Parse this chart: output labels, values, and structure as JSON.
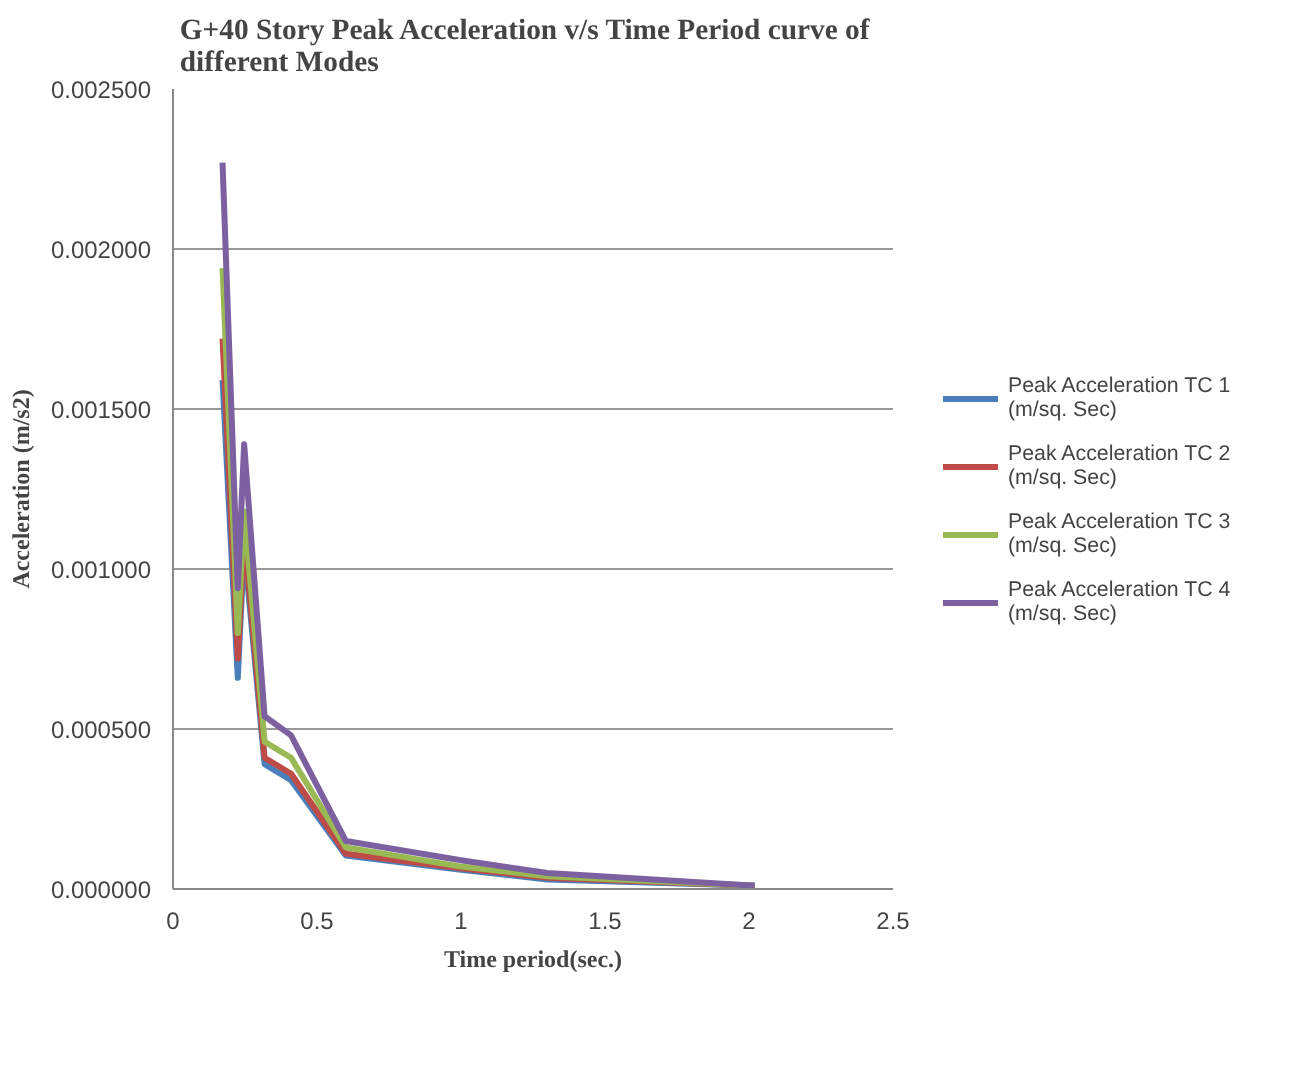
{
  "chart_data": {
    "type": "line",
    "title": "G+40 Story Peak Acceleration  v/s Time Period curve  of different Modes",
    "xlabel": "Time period(sec.)",
    "ylabel": "Acceleration (m/s2)",
    "x": [
      0.172,
      0.225,
      0.247,
      0.318,
      0.41,
      0.6,
      1.0,
      1.3,
      2.02
    ],
    "series": [
      {
        "name": "Peak Acceleration TC 1 (m/sq. Sec)",
        "color": "#4a7ebb",
        "values": [
          0.00159,
          0.00066,
          0.00107,
          0.00039,
          0.00034,
          0.000105,
          6e-05,
          3e-05,
          1e-05
        ]
      },
      {
        "name": "Peak Acceleration TC 2 (m/sq. Sec)",
        "color": "#be4b48",
        "values": [
          0.00172,
          0.00072,
          0.00111,
          0.00041,
          0.00036,
          0.00011,
          6.5e-05,
          3.5e-05,
          1e-05
        ]
      },
      {
        "name": "Peak Acceleration TC 3 (m/sq. Sec)",
        "color": "#98b954",
        "values": [
          0.00194,
          0.0008,
          0.00118,
          0.00046,
          0.00041,
          0.00013,
          7e-05,
          4e-05,
          1e-05
        ]
      },
      {
        "name": "Peak Acceleration TC 4 (m/sq. Sec)",
        "color": "#7d60a0",
        "values": [
          0.00227,
          0.00094,
          0.00139,
          0.00054,
          0.00048,
          0.00015,
          9e-05,
          5e-05,
          1e-05
        ]
      }
    ],
    "xlim": [
      0,
      2.5
    ],
    "xticks": [
      0,
      0.5,
      1,
      1.5,
      2,
      2.5
    ],
    "ylim": [
      0,
      0.0025
    ],
    "yticks": [
      {
        "value": 0,
        "label": "0.000000"
      },
      {
        "value": 0.0005,
        "label": "0.000500"
      },
      {
        "value": 0.001,
        "label": "0.001000"
      },
      {
        "value": 0.0015,
        "label": "0.001500"
      },
      {
        "value": 0.002,
        "label": "0.002000"
      },
      {
        "value": 0.0025,
        "label": "0.002500"
      }
    ],
    "grid": "y",
    "legend": "right",
    "line_style": "solid",
    "marker": "none"
  }
}
